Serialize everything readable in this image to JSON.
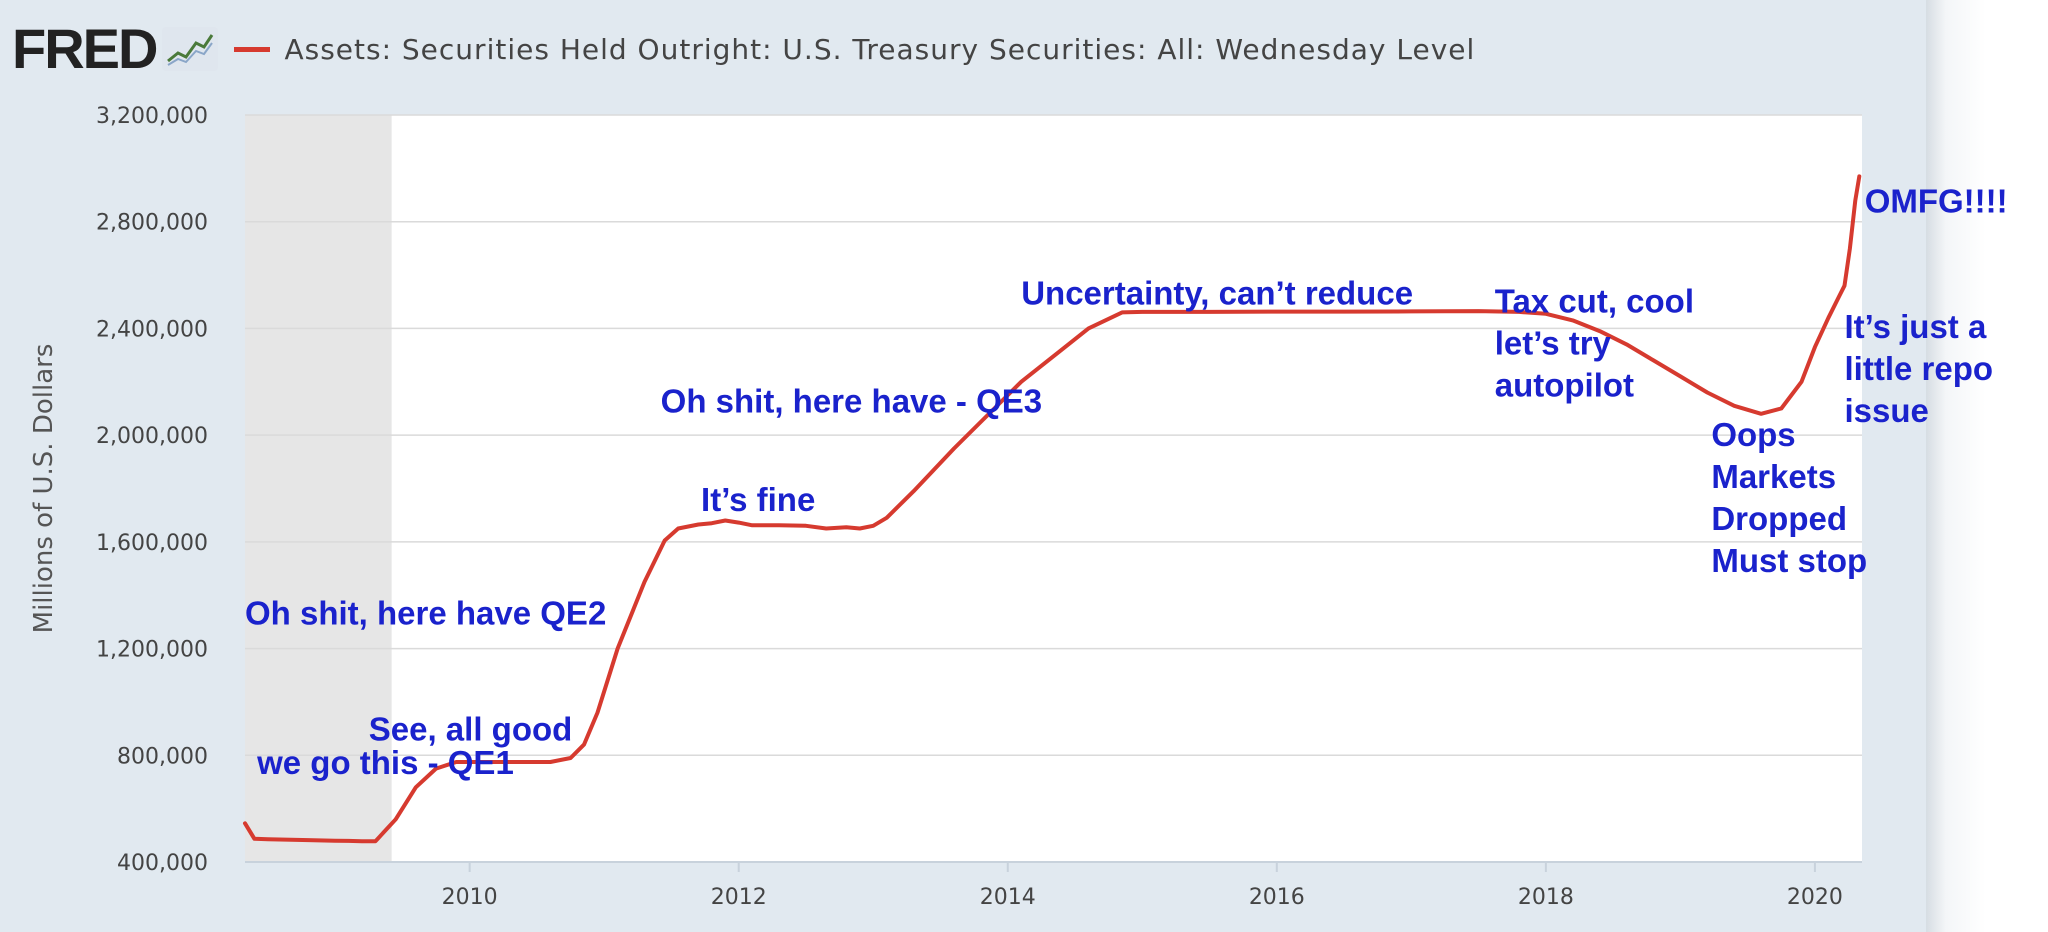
{
  "header": {
    "logo_text": "FRED",
    "series_title": "Assets: Securities Held Outright: U.S. Treasury Securities: All: Wednesday Level"
  },
  "colors": {
    "series": "#d63a2f",
    "recession_shade": "#e6e6e6",
    "gridline": "#dadada",
    "annotation": "#1a22cc",
    "panel": "#e1e9f0"
  },
  "icons": [
    "fred-logo-chart-icon"
  ],
  "chart_data": {
    "type": "line",
    "title": "Assets: Securities Held Outright: U.S. Treasury Securities: All: Wednesday Level",
    "xlabel": "",
    "ylabel": "Millions of U.S. Dollars",
    "xlim": [
      2008.33,
      2020.35
    ],
    "ylim": [
      400000,
      3200000
    ],
    "yticks": [
      400000,
      800000,
      1200000,
      1600000,
      2000000,
      2400000,
      2800000,
      3200000
    ],
    "ytick_labels": [
      "400,000",
      "800,000",
      "1,200,000",
      "1,600,000",
      "2,000,000",
      "2,400,000",
      "2,800,000",
      "3,200,000"
    ],
    "xticks": [
      2010,
      2012,
      2014,
      2016,
      2018,
      2020
    ],
    "xtick_labels": [
      "2010",
      "2012",
      "2014",
      "2016",
      "2018",
      "2020"
    ],
    "grid": true,
    "recession_shading": [
      2008.33,
      2009.42
    ],
    "series": [
      {
        "name": "Assets: Securities Held Outright: U.S. Treasury Securities: All: Wednesday Level",
        "x": [
          2008.33,
          2008.4,
          2008.5,
          2008.8,
          2009.0,
          2009.1,
          2009.2,
          2009.3,
          2009.45,
          2009.6,
          2009.75,
          2009.9,
          2010.3,
          2010.6,
          2010.75,
          2010.85,
          2010.95,
          2011.1,
          2011.3,
          2011.45,
          2011.55,
          2011.7,
          2011.8,
          2011.9,
          2012.0,
          2012.1,
          2012.3,
          2012.5,
          2012.65,
          2012.8,
          2012.9,
          2013.0,
          2013.1,
          2013.3,
          2013.6,
          2013.9,
          2014.1,
          2014.4,
          2014.6,
          2014.85,
          2015.0,
          2015.5,
          2016.0,
          2016.5,
          2017.0,
          2017.5,
          2017.8,
          2018.0,
          2018.2,
          2018.4,
          2018.6,
          2018.8,
          2019.0,
          2019.2,
          2019.4,
          2019.6,
          2019.75,
          2019.9,
          2020.0,
          2020.1,
          2020.18,
          2020.22,
          2020.26,
          2020.3,
          2020.33
        ],
        "values": [
          545000,
          487000,
          485000,
          482000,
          480000,
          479000,
          478000,
          478000,
          560000,
          680000,
          750000,
          775000,
          775000,
          775000,
          790000,
          840000,
          960000,
          1200000,
          1450000,
          1605000,
          1650000,
          1665000,
          1670000,
          1680000,
          1672000,
          1662000,
          1662000,
          1660000,
          1650000,
          1655000,
          1650000,
          1660000,
          1690000,
          1790000,
          1950000,
          2100000,
          2200000,
          2320000,
          2400000,
          2460000,
          2462000,
          2462000,
          2463000,
          2463000,
          2464000,
          2465000,
          2462000,
          2455000,
          2430000,
          2390000,
          2340000,
          2280000,
          2220000,
          2160000,
          2110000,
          2080000,
          2100000,
          2200000,
          2330000,
          2440000,
          2520000,
          2560000,
          2700000,
          2880000,
          2970000
        ]
      }
    ],
    "annotations": [
      {
        "text": "we go this - QE1",
        "x": 2008.42,
        "y": 730000
      },
      {
        "text": "See, all good",
        "x": 2009.25,
        "y": 855000
      },
      {
        "text": "Oh shit, here have QE2",
        "x": 2008.33,
        "y": 1290000
      },
      {
        "text": "It’s fine",
        "x": 2011.72,
        "y": 1715000
      },
      {
        "text": "Oh shit, here have - QE3",
        "x": 2011.42,
        "y": 2085000
      },
      {
        "text": "Uncertainty, can’t reduce",
        "x": 2014.1,
        "y": 2490000
      },
      {
        "text": "Tax cut, cool\nlet’s try\nautopilot",
        "x": 2017.62,
        "y": 2460000
      },
      {
        "text": "Oops\nMarkets\nDropped\nMust stop",
        "x": 2019.23,
        "y": 1960000
      },
      {
        "text": "It’s just a\nlittle repo\nissue",
        "x": 2020.22,
        "y": 2365000
      },
      {
        "text": "OMFG!!!!",
        "x": 2020.37,
        "y": 2835000
      }
    ]
  }
}
